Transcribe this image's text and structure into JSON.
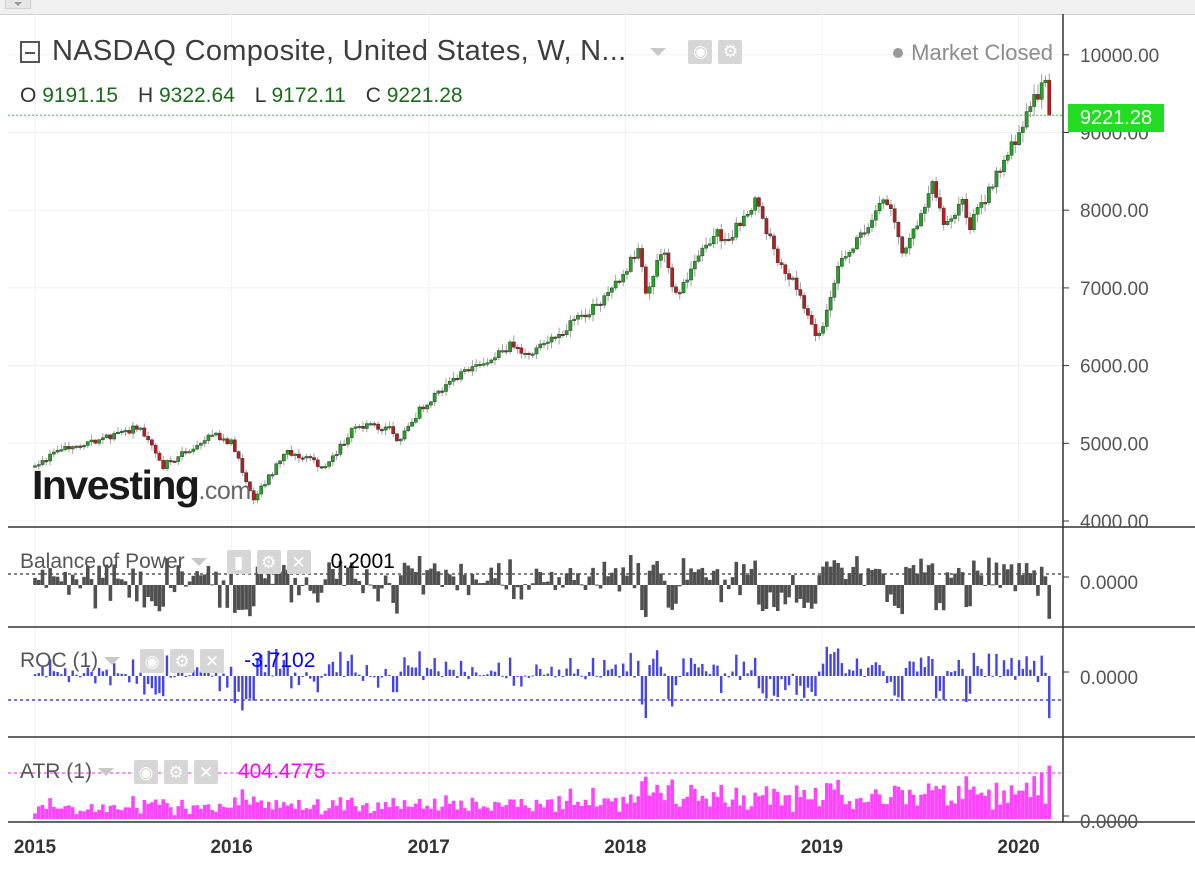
{
  "header": {
    "title": "NASDAQ Composite, United States, W, N...",
    "market_status": "Market Closed",
    "ohlc": {
      "o_label": "O",
      "o": "9191.15",
      "h_label": "H",
      "h": "9322.64",
      "l_label": "L",
      "l": "9172.11",
      "c_label": "C",
      "c": "9221.28"
    },
    "price_label": "9221.28"
  },
  "logo": {
    "text": "Investing",
    "suffix": ".com"
  },
  "indicators": [
    {
      "name": "Balance of Power",
      "value": "0.2001",
      "color": "#000000"
    },
    {
      "name": "ROC (1)",
      "value": "-3.7102",
      "color": "#0000ff"
    },
    {
      "name": "ATR (1)",
      "value": "404.4775",
      "color": "#ff00ff"
    }
  ],
  "colors": {
    "up": "#1fa51f",
    "down": "#c0191d",
    "bop": "#505050",
    "roc": "#4444ee",
    "atr": "#ff44ff",
    "last_price": "#22dd22"
  },
  "chart_data": {
    "type": "candlestick",
    "title": "NASDAQ Composite, United States, W, N...",
    "interval": "W",
    "xaxis_ticks": [
      "2015",
      "2016",
      "2017",
      "2018",
      "2019",
      "2020"
    ],
    "price_axis": {
      "ticks": [
        "10000.00",
        "9000.00",
        "8000.00",
        "7000.00",
        "6000.00",
        "5000.00",
        "4000.00"
      ],
      "ylim": [
        4000,
        10000
      ],
      "last": 9221.28
    },
    "indicator_axis_ticks": [
      "0.0000",
      "0.0000",
      "0.0000"
    ],
    "close_anchors": [
      [
        "2015-01-01",
        4700
      ],
      [
        "2015-03-01",
        4950
      ],
      [
        "2015-05-01",
        5050
      ],
      [
        "2015-07-15",
        5210
      ],
      [
        "2015-08-25",
        4700
      ],
      [
        "2015-10-10",
        4900
      ],
      [
        "2015-11-25",
        5110
      ],
      [
        "2015-12-31",
        5010
      ],
      [
        "2016-02-10",
        4300
      ],
      [
        "2016-04-15",
        4900
      ],
      [
        "2016-06-27",
        4690
      ],
      [
        "2016-08-15",
        5230
      ],
      [
        "2016-10-20",
        5200
      ],
      [
        "2016-11-05",
        5050
      ],
      [
        "2016-12-20",
        5470
      ],
      [
        "2017-03-01",
        5900
      ],
      [
        "2017-06-01",
        6250
      ],
      [
        "2017-07-01",
        6150
      ],
      [
        "2017-09-01",
        6420
      ],
      [
        "2017-11-30",
        6900
      ],
      [
        "2018-01-26",
        7500
      ],
      [
        "2018-02-09",
        6870
      ],
      [
        "2018-03-12",
        7560
      ],
      [
        "2018-04-02",
        6880
      ],
      [
        "2018-06-20",
        7780
      ],
      [
        "2018-07-01",
        7550
      ],
      [
        "2018-08-30",
        8110
      ],
      [
        "2018-10-10",
        7400
      ],
      [
        "2018-11-20",
        6960
      ],
      [
        "2018-12-24",
        6300
      ],
      [
        "2019-02-01",
        7260
      ],
      [
        "2019-04-30",
        8150
      ],
      [
        "2019-06-01",
        7450
      ],
      [
        "2019-07-26",
        8330
      ],
      [
        "2019-08-15",
        7800
      ],
      [
        "2019-09-20",
        8100
      ],
      [
        "2019-10-03",
        7800
      ],
      [
        "2019-12-31",
        8970
      ],
      [
        "2020-02-19",
        9700
      ],
      [
        "2020-02-28",
        9221.28
      ]
    ]
  }
}
